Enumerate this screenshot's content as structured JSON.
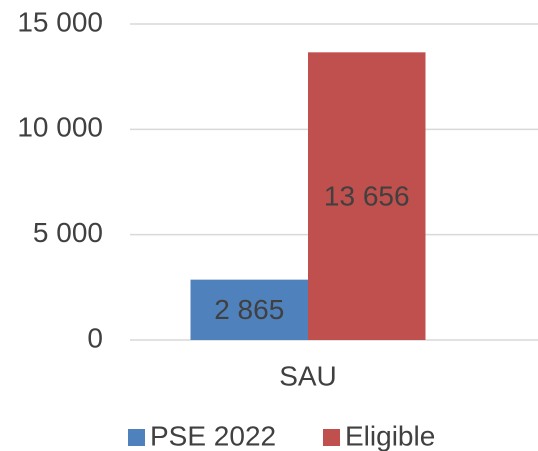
{
  "chart_data": {
    "type": "bar",
    "categories": [
      "SAU"
    ],
    "series": [
      {
        "name": "PSE 2022",
        "color": "#4f81bd",
        "values": [
          2865
        ],
        "value_labels": [
          "2 865"
        ]
      },
      {
        "name": "Eligible",
        "color": "#c0504d",
        "values": [
          13656
        ],
        "value_labels": [
          "13 656"
        ]
      }
    ],
    "ylim": [
      0,
      15000
    ],
    "yticks": [
      0,
      {
        "value": 5000,
        "label": "5 000"
      },
      {
        "value": 10000,
        "label": "10 000"
      },
      {
        "value": 15000,
        "label": "15 000"
      }
    ],
    "grid": true,
    "legend": "bottom"
  }
}
